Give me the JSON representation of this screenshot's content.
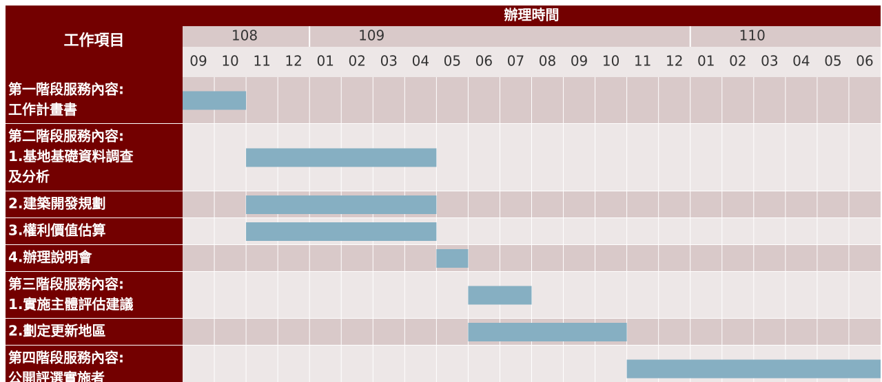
{
  "header": {
    "task_column": "工作項目",
    "time_title": "辦理時間"
  },
  "years": [
    {
      "label": "108",
      "months": [
        "09",
        "10",
        "11",
        "12"
      ]
    },
    {
      "label": "109",
      "months": [
        "01",
        "02",
        "03",
        "04",
        "05",
        "06",
        "07",
        "08",
        "09",
        "10",
        "11",
        "12"
      ]
    },
    {
      "label": "110",
      "months": [
        "01",
        "02",
        "03",
        "04",
        "05",
        "06"
      ]
    }
  ],
  "tasks": [
    {
      "lines": [
        "第一階段服務內容:",
        "工作計畫書"
      ],
      "start": 0,
      "end": 1
    },
    {
      "lines": [
        "第二階段服務內容:",
        "1.基地基礎資料調查",
        "及分析"
      ],
      "start": 2,
      "end": 7
    },
    {
      "lines": [
        "2.建築開發規劃"
      ],
      "start": 2,
      "end": 7
    },
    {
      "lines": [
        "3.權利價值估算"
      ],
      "start": 2,
      "end": 7
    },
    {
      "lines": [
        "4.辦理說明會"
      ],
      "start": 8,
      "end": 8
    },
    {
      "lines": [
        "第三階段服務內容:",
        "1.實施主體評估建議"
      ],
      "start": 9,
      "end": 10
    },
    {
      "lines": [
        "2.劃定更新地區"
      ],
      "start": 9,
      "end": 13
    },
    {
      "lines": [
        "第四階段服務內容:",
        "公開評選實施者"
      ],
      "start": 14,
      "end": 21
    }
  ]
}
